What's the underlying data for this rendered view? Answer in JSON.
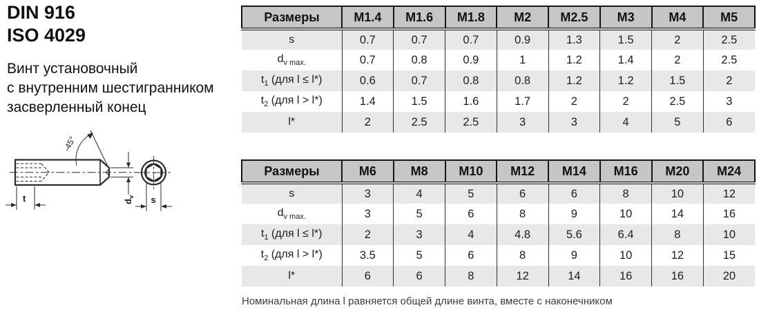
{
  "header": {
    "standards": [
      "DIN 916",
      "ISO 4029"
    ],
    "description": [
      "Винт установочный",
      "с внутренним шестигранником",
      "засверленный конец"
    ]
  },
  "drawing": {
    "angle_label": "-45°",
    "socket_depth_label": "t",
    "tip_diameter_label": {
      "main": "d",
      "sub": "v"
    },
    "hex_size_label": "s"
  },
  "tables": [
    {
      "corner_label": "Размеры",
      "columns": [
        "M1.4",
        "M1.6",
        "M1.8",
        "M2",
        "M2.5",
        "M3",
        "M4",
        "M5"
      ],
      "rows": [
        {
          "label": {
            "main": "s",
            "sub": "",
            "suffix": ""
          },
          "values": [
            "0.7",
            "0.7",
            "0.7",
            "0.9",
            "1.3",
            "1.5",
            "2",
            "2.5"
          ]
        },
        {
          "label": {
            "main": "d",
            "sub": "v max.",
            "suffix": ""
          },
          "values": [
            "0.7",
            "0.8",
            "0.9",
            "1",
            "1.2",
            "1.4",
            "2",
            "2.5"
          ]
        },
        {
          "label": {
            "main": "t",
            "sub": "1",
            "suffix": " (для l ≤ l*)"
          },
          "values": [
            "0.6",
            "0.7",
            "0.8",
            "0.8",
            "1.2",
            "1.2",
            "1.5",
            "2"
          ]
        },
        {
          "label": {
            "main": "t",
            "sub": "2",
            "suffix": " (для l > l*)"
          },
          "values": [
            "1.4",
            "1.5",
            "1.6",
            "1.7",
            "2",
            "2",
            "2.5",
            "3"
          ]
        },
        {
          "label": {
            "main": "l*",
            "sub": "",
            "suffix": ""
          },
          "values": [
            "2",
            "2.5",
            "2.5",
            "3",
            "3",
            "4",
            "5",
            "6"
          ]
        }
      ]
    },
    {
      "corner_label": "Размеры",
      "columns": [
        "M6",
        "M8",
        "M10",
        "M12",
        "M14",
        "M16",
        "M20",
        "M24"
      ],
      "rows": [
        {
          "label": {
            "main": "s",
            "sub": "",
            "suffix": ""
          },
          "values": [
            "3",
            "4",
            "5",
            "6",
            "6",
            "8",
            "10",
            "12"
          ]
        },
        {
          "label": {
            "main": "d",
            "sub": "v max.",
            "suffix": ""
          },
          "values": [
            "3",
            "5",
            "6",
            "8",
            "9",
            "10",
            "14",
            "16"
          ]
        },
        {
          "label": {
            "main": "t",
            "sub": "1",
            "suffix": " (для l ≤ l*)"
          },
          "values": [
            "2",
            "3",
            "4",
            "4.8",
            "5.6",
            "6.4",
            "8",
            "10"
          ]
        },
        {
          "label": {
            "main": "t",
            "sub": "2",
            "suffix": " (для l > l*)"
          },
          "values": [
            "3.5",
            "5",
            "6",
            "8",
            "9",
            "10",
            "12",
            "15"
          ]
        },
        {
          "label": {
            "main": "l*",
            "sub": "",
            "suffix": ""
          },
          "values": [
            "6",
            "6",
            "8",
            "12",
            "14",
            "16",
            "16",
            "20"
          ]
        }
      ]
    }
  ],
  "note": "Номинальная длина l равняется общей длине винта, вместе с наконечником",
  "colors": {
    "table_header_bg": "#c6c6c6",
    "row_alt_bg": "#e8e8e8",
    "border": "#141414"
  }
}
